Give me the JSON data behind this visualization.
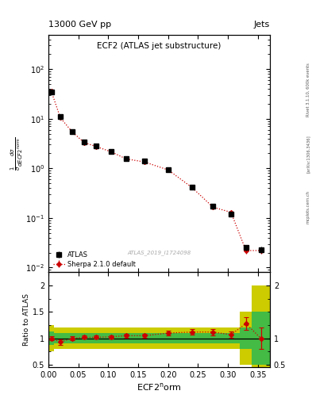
{
  "title_top": "13000 GeV pp",
  "title_right": "Jets",
  "plot_title": "ECF2 (ATLAS jet substructure)",
  "xlabel": "ECF2$^{\\rm n}$orm",
  "ylabel_ratio": "Ratio to ATLAS",
  "watermark": "ATLAS_2019_I1724098",
  "right_label": "Rivet 3.1.10, 600k events",
  "arxiv_label": "[arXiv:1306.3436]",
  "mcplots_label": "mcplots.cern.ch",
  "x_edges": [
    0.0,
    0.01,
    0.03,
    0.05,
    0.07,
    0.09,
    0.12,
    0.14,
    0.18,
    0.22,
    0.26,
    0.29,
    0.32,
    0.34,
    0.37
  ],
  "atlas_y": [
    35.0,
    11.0,
    5.5,
    3.4,
    2.8,
    2.2,
    1.6,
    1.4,
    0.95,
    0.42,
    0.17,
    0.12,
    0.025,
    0.023
  ],
  "atlas_yerr": [
    2.0,
    0.5,
    0.3,
    0.2,
    0.15,
    0.12,
    0.1,
    0.1,
    0.07,
    0.04,
    0.015,
    0.012,
    0.003,
    0.003
  ],
  "sherpa_y": [
    35.5,
    10.5,
    5.4,
    3.3,
    2.75,
    2.15,
    1.55,
    1.35,
    0.93,
    0.41,
    0.165,
    0.13,
    0.022,
    0.022
  ],
  "sherpa_yerr": [
    1.5,
    0.4,
    0.25,
    0.18,
    0.13,
    0.1,
    0.09,
    0.09,
    0.06,
    0.03,
    0.012,
    0.01,
    0.003,
    0.003
  ],
  "ratio_y": [
    1.0,
    0.93,
    1.0,
    1.02,
    1.02,
    1.03,
    1.05,
    1.05,
    1.1,
    1.12,
    1.12,
    1.07,
    1.28,
    1.0
  ],
  "ratio_yerr": [
    0.04,
    0.05,
    0.04,
    0.03,
    0.03,
    0.03,
    0.04,
    0.04,
    0.05,
    0.05,
    0.06,
    0.06,
    0.12,
    0.2
  ],
  "yellow_up": [
    0.25,
    0.2,
    0.2,
    0.2,
    0.2,
    0.2,
    0.2,
    0.2,
    0.2,
    0.2,
    0.2,
    0.2,
    0.5,
    1.0
  ],
  "yellow_dn": [
    0.25,
    0.2,
    0.2,
    0.2,
    0.2,
    0.2,
    0.2,
    0.2,
    0.2,
    0.2,
    0.2,
    0.2,
    0.5,
    1.0
  ],
  "green_up": [
    0.13,
    0.1,
    0.1,
    0.1,
    0.1,
    0.1,
    0.1,
    0.1,
    0.1,
    0.1,
    0.1,
    0.1,
    0.2,
    0.5
  ],
  "green_dn": [
    0.13,
    0.1,
    0.1,
    0.1,
    0.1,
    0.1,
    0.1,
    0.1,
    0.1,
    0.1,
    0.1,
    0.1,
    0.2,
    0.5
  ],
  "xlim": [
    0.0,
    0.37
  ],
  "ylim_main": [
    0.008,
    500
  ],
  "ylim_ratio": [
    0.45,
    2.25
  ],
  "color_atlas": "#000000",
  "color_sherpa": "#cc0000",
  "color_green": "#44bb44",
  "color_yellow": "#cccc00",
  "background_color": "#ffffff"
}
